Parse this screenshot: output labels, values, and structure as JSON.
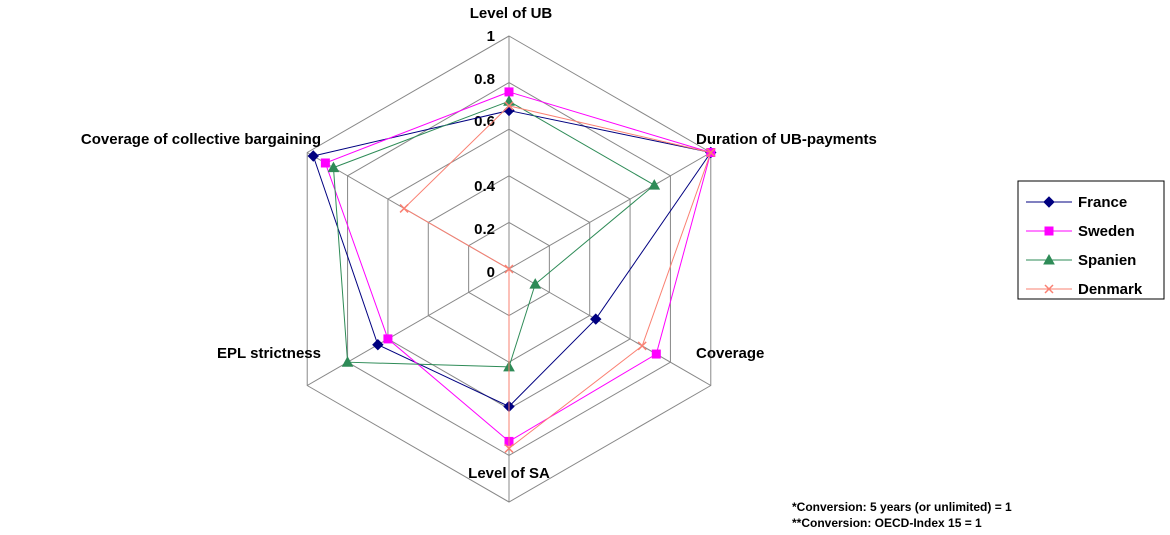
{
  "chart_data": {
    "type": "radar",
    "axes": [
      "Level of UB",
      "Duration of UB-payments",
      "Coverage",
      "Level of SA",
      "EPL strictness",
      "Coverage of collective bargaining"
    ],
    "rlim": [
      0,
      1
    ],
    "ticks": [
      0,
      0.2,
      0.4,
      0.6,
      0.8,
      1
    ],
    "tick_labels": [
      "0",
      "0.2",
      "0.4",
      "0.6",
      "0.8",
      "1"
    ],
    "grid": true,
    "legend_position": "right",
    "series": [
      {
        "name": "France",
        "color": "#000080",
        "marker": "diamond",
        "values": [
          0.68,
          1.0,
          0.43,
          0.59,
          0.65,
          0.97
        ]
      },
      {
        "name": "Sweden",
        "color": "#ff00ff",
        "marker": "square",
        "values": [
          0.76,
          1.0,
          0.73,
          0.74,
          0.6,
          0.91
        ]
      },
      {
        "name": "Spanien",
        "color": "#2e8b57",
        "marker": "triangle",
        "values": [
          0.72,
          0.72,
          0.13,
          0.42,
          0.8,
          0.87
        ]
      },
      {
        "name": "Denmark",
        "color": "#fa8072",
        "marker": "x",
        "values": [
          0.7,
          1.0,
          0.66,
          0.77,
          0.0,
          0.52
        ]
      }
    ]
  },
  "notes": [
    "*Conversion: 5 years (or unlimited) = 1",
    "**Conversion: OECD-Index 15 = 1"
  ]
}
